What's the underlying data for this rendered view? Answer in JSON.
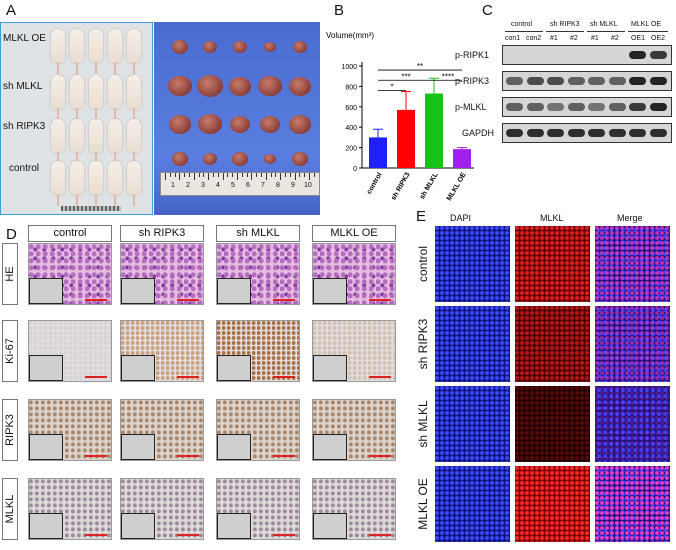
{
  "panels": {
    "a": "A",
    "b": "B",
    "c": "C",
    "d": "D",
    "e": "E"
  },
  "panelA": {
    "rows": [
      "MLKL OE",
      "sh MLKL",
      "sh RIPK3",
      "control"
    ],
    "ruler_numbers": [
      "1",
      "2",
      "3",
      "4",
      "5",
      "6",
      "7",
      "8",
      "9",
      "10"
    ]
  },
  "chart_data": {
    "type": "bar",
    "ylabel": "Volume(mm³)",
    "categories": [
      "control",
      "sh RIPK3",
      "sh MLKL",
      "MLKL OE"
    ],
    "values": [
      300,
      570,
      730,
      185
    ],
    "errors": [
      80,
      180,
      150,
      15
    ],
    "colors": [
      "#1f1fff",
      "#ff0000",
      "#19c219",
      "#a020f0"
    ],
    "ylim": [
      0,
      1000
    ],
    "yticks": [
      "0",
      "200",
      "400",
      "600",
      "800",
      "1000"
    ],
    "significance": [
      {
        "label": "*",
        "from": 0,
        "to": 1
      },
      {
        "label": "***",
        "from": 0,
        "to": 2
      },
      {
        "label": "****",
        "from": 2,
        "to": 3
      },
      {
        "label": "**",
        "from": 0,
        "to": 3
      }
    ]
  },
  "panelC": {
    "groups": [
      "control",
      "sh RIPK3",
      "sh MLKL",
      "MLKL OE"
    ],
    "lanes": [
      "con1",
      "con2",
      "#1",
      "#2",
      "#1",
      "#2",
      "OE1",
      "OE2"
    ],
    "blots": [
      "p-RIPK1",
      "p-RIPK3",
      "p-MLKL",
      "GAPDH"
    ]
  },
  "panelD": {
    "columns": [
      "control",
      "sh RIPK3",
      "sh MLKL",
      "MLKL OE"
    ],
    "rows": [
      "HE",
      "Ki-67",
      "RIPK3",
      "MLKL"
    ]
  },
  "panelE": {
    "columns": [
      "DAPI",
      "MLKL",
      "Merge"
    ],
    "rows": [
      "control",
      "sh RIPK3",
      "sh MLKL",
      "MLKL OE"
    ]
  }
}
